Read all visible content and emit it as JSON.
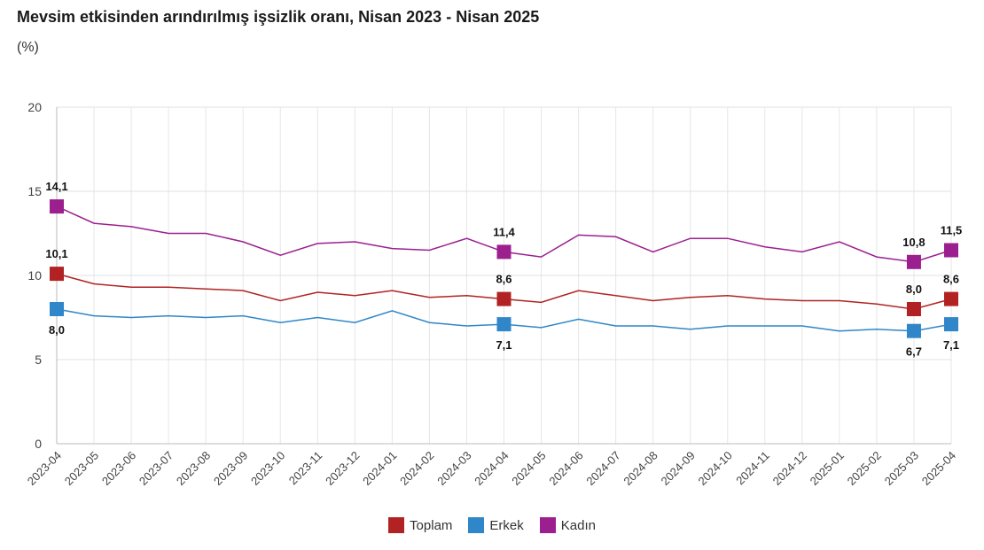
{
  "title": "Mevsim etkisinden arındırılmış işsizlik oranı, Nisan 2023 - Nisan 2025",
  "subtitle": "(%)",
  "chart_data": {
    "type": "line",
    "title": "Mevsim etkisinden arındırılmış işsizlik oranı, Nisan 2023 - Nisan 2025",
    "subtitle": "(%)",
    "ylim": [
      0,
      20
    ],
    "yticks": [
      0,
      5,
      10,
      15,
      20
    ],
    "grid": true,
    "legend_position": "bottom-center",
    "x": [
      "2023-04",
      "2023-05",
      "2023-06",
      "2023-07",
      "2023-08",
      "2023-09",
      "2023-10",
      "2023-11",
      "2023-12",
      "2024-01",
      "2024-02",
      "2024-03",
      "2024-04",
      "2024-05",
      "2024-06",
      "2024-07",
      "2024-08",
      "2024-09",
      "2024-10",
      "2024-11",
      "2024-12",
      "2025-01",
      "2025-02",
      "2025-03",
      "2025-04"
    ],
    "series": [
      {
        "name": "Toplam",
        "color": "#b22222",
        "values": [
          10.1,
          9.5,
          9.3,
          9.3,
          9.2,
          9.1,
          8.5,
          9.0,
          8.8,
          9.1,
          8.7,
          8.8,
          8.6,
          8.4,
          9.1,
          8.8,
          8.5,
          8.7,
          8.8,
          8.6,
          8.5,
          8.5,
          8.3,
          8.0,
          8.6
        ]
      },
      {
        "name": "Erkek",
        "color": "#2f86c8",
        "values": [
          8.0,
          7.6,
          7.5,
          7.6,
          7.5,
          7.6,
          7.2,
          7.5,
          7.2,
          7.9,
          7.2,
          7.0,
          7.1,
          6.9,
          7.4,
          7.0,
          7.0,
          6.8,
          7.0,
          7.0,
          7.0,
          6.7,
          6.8,
          6.7,
          7.1
        ]
      },
      {
        "name": "Kadın",
        "color": "#9b1f8f",
        "values": [
          14.1,
          13.1,
          12.9,
          12.5,
          12.5,
          12.0,
          11.2,
          11.9,
          12.0,
          11.6,
          11.5,
          12.2,
          11.4,
          11.1,
          12.4,
          12.3,
          11.4,
          12.2,
          12.2,
          11.7,
          11.4,
          12.0,
          11.1,
          10.8,
          11.5
        ]
      }
    ],
    "markers": [
      {
        "series": 0,
        "index": 0,
        "label": "10,1",
        "pos": "above"
      },
      {
        "series": 0,
        "index": 12,
        "label": "8,6",
        "pos": "above"
      },
      {
        "series": 0,
        "index": 23,
        "label": "8,0",
        "pos": "above"
      },
      {
        "series": 0,
        "index": 24,
        "label": "8,6",
        "pos": "above"
      },
      {
        "series": 1,
        "index": 0,
        "label": "8,0",
        "pos": "below"
      },
      {
        "series": 1,
        "index": 12,
        "label": "7,1",
        "pos": "below"
      },
      {
        "series": 1,
        "index": 23,
        "label": "6,7",
        "pos": "below"
      },
      {
        "series": 1,
        "index": 24,
        "label": "7,1",
        "pos": "below"
      },
      {
        "series": 2,
        "index": 0,
        "label": "14,1",
        "pos": "above"
      },
      {
        "series": 2,
        "index": 12,
        "label": "11,4",
        "pos": "above"
      },
      {
        "series": 2,
        "index": 23,
        "label": "10,8",
        "pos": "above"
      },
      {
        "series": 2,
        "index": 24,
        "label": "11,5",
        "pos": "above"
      }
    ]
  }
}
